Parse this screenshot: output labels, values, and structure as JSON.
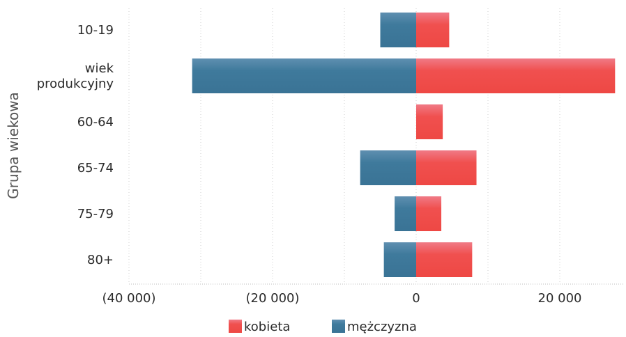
{
  "chart_data": {
    "type": "bar",
    "orientation": "horizontal",
    "stacked": "diverging",
    "categories": [
      "10-19",
      "wiek produkcyjny",
      "60-64",
      "65-74",
      "75-79",
      "80+"
    ],
    "category_lines": [
      [
        "10-19"
      ],
      [
        "wiek",
        "produkcyjny"
      ],
      [
        "60-64"
      ],
      [
        "65-74"
      ],
      [
        "75-79"
      ],
      [
        "80+"
      ]
    ],
    "series": [
      {
        "name": "kobieta",
        "color": "#f0504f",
        "values": [
          4600,
          27700,
          3700,
          8400,
          3500,
          7800
        ]
      },
      {
        "name": "mężczyzna",
        "color": "#3f7a9c",
        "values": [
          -5000,
          -31200,
          0,
          -7800,
          -3000,
          -4500
        ]
      }
    ],
    "xlim": [
      -40000,
      29000
    ],
    "x_ticks": [
      -40000,
      -20000,
      0,
      20000
    ],
    "x_tick_labels": [
      "(40 000)",
      "(20 000)",
      "0",
      "20 000"
    ],
    "ylabel": "Grupa wiekowa",
    "xlabel": "",
    "grid": "vertical-dotted",
    "legend_position": "bottom-center",
    "legend": [
      "kobieta",
      "mężczyzna"
    ]
  }
}
